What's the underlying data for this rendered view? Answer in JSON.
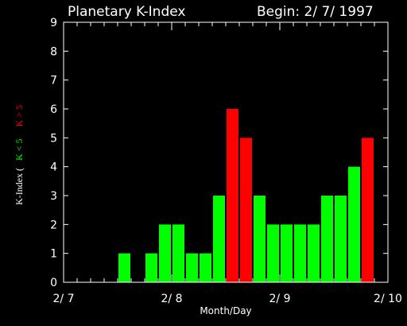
{
  "chart_data": {
    "type": "bar",
    "title": "Planetary K-Index",
    "subtitle": "Begin: 2/ 7/ 1997",
    "xlabel": "Month/Day",
    "ylabel": {
      "prefix": "K-Index  (",
      "green_part": "K < 5",
      "red_part": "K > 5",
      "suffix": ""
    },
    "ylim": [
      0,
      9
    ],
    "y_ticks": [
      "0",
      "1",
      "2",
      "3",
      "4",
      "5",
      "6",
      "7",
      "8",
      "9"
    ],
    "x_ticks": [
      "2/ 7",
      "2/ 8",
      "2/ 9",
      "2/ 10"
    ],
    "x_tick_positions_days": [
      0,
      1,
      2,
      3
    ],
    "bar_interval_hours": 3,
    "values": [
      0,
      0,
      0,
      0,
      1,
      0,
      1,
      2,
      2,
      1,
      1,
      3,
      6,
      5,
      3,
      2,
      2,
      2,
      2,
      3,
      3,
      4,
      5,
      0
    ],
    "threshold": 5,
    "grid": false,
    "legend": "none"
  },
  "colors": {
    "background": "#000000",
    "axis": "#ffffff",
    "low": "#00ff00",
    "high": "#ff0000"
  }
}
